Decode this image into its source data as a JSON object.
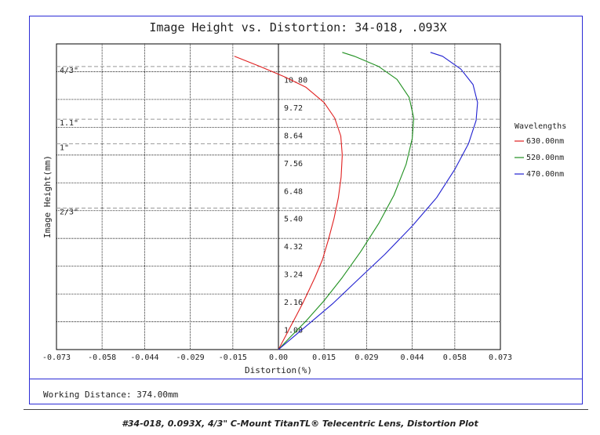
{
  "chart_data": {
    "type": "line",
    "title": "Image Height vs. Distortion: 34-018, .093X",
    "xlabel": "Distortion(%)",
    "ylabel": "Image Height(mm)",
    "xlim": [
      -0.073,
      0.073
    ],
    "ylim": [
      0,
      11.88
    ],
    "grid": true,
    "x_ticks": [
      "-0.073",
      "-0.058",
      "-0.044",
      "-0.029",
      "-0.015",
      "0.00",
      "0.015",
      "0.029",
      "0.044",
      "0.058",
      "0.073"
    ],
    "x_tick_values": [
      -0.073,
      -0.058,
      -0.044,
      -0.029,
      -0.015,
      0.0,
      0.015,
      0.029,
      0.044,
      0.058,
      0.073
    ],
    "y_ticks": [
      "1.08",
      "2.16",
      "3.24",
      "4.32",
      "5.40",
      "6.48",
      "7.56",
      "8.64",
      "9.72",
      "10.80"
    ],
    "y_tick_values": [
      1.08,
      2.16,
      3.24,
      4.32,
      5.4,
      6.48,
      7.56,
      8.64,
      9.72,
      10.8
    ],
    "sensor_markers": [
      {
        "label": "4/3\"",
        "height": 11.0
      },
      {
        "label": "1.1\"",
        "height": 8.95
      },
      {
        "label": "1\"",
        "height": 8.0
      },
      {
        "label": "2/3\"",
        "height": 5.5
      }
    ],
    "legend_title": "Wavelengths",
    "legend_position": "right",
    "series": [
      {
        "name": "630.00nm",
        "color": "#e02020",
        "x": [
          0.0,
          0.002,
          0.004,
          0.006,
          0.008,
          0.01,
          0.012,
          0.0145,
          0.0165,
          0.0183,
          0.0197,
          0.0206,
          0.021,
          0.0205,
          0.0185,
          0.015,
          0.009,
          0.002,
          -0.006,
          -0.0145
        ],
        "y": [
          0.0,
          0.45,
          0.9,
          1.35,
          1.8,
          2.3,
          2.8,
          3.5,
          4.3,
          5.1,
          5.9,
          6.7,
          7.56,
          8.3,
          9.0,
          9.6,
          10.2,
          10.6,
          11.0,
          11.4
        ]
      },
      {
        "name": "520.00nm",
        "color": "#209020",
        "x": [
          0.0,
          0.004,
          0.009,
          0.015,
          0.021,
          0.027,
          0.033,
          0.038,
          0.042,
          0.044,
          0.0445,
          0.043,
          0.039,
          0.033,
          0.025,
          0.021
        ],
        "y": [
          0.0,
          0.5,
          1.1,
          1.9,
          2.8,
          3.8,
          4.9,
          6.0,
          7.2,
          8.2,
          9.0,
          9.8,
          10.5,
          11.0,
          11.4,
          11.55
        ]
      },
      {
        "name": "470.00nm",
        "color": "#2020d0",
        "x": [
          0.0,
          0.005,
          0.011,
          0.018,
          0.026,
          0.035,
          0.044,
          0.052,
          0.058,
          0.0625,
          0.065,
          0.0655,
          0.064,
          0.06,
          0.054,
          0.05
        ],
        "y": [
          0.0,
          0.5,
          1.1,
          1.8,
          2.7,
          3.7,
          4.8,
          5.9,
          7.0,
          8.0,
          8.9,
          9.6,
          10.3,
          10.9,
          11.4,
          11.55
        ]
      }
    ]
  },
  "footer": {
    "working_distance": "Working Distance: 374.00mm"
  },
  "caption": "#34-018, 0.093X, 4/3\" C-Mount TitanTL® Telecentric Lens, Distortion Plot"
}
